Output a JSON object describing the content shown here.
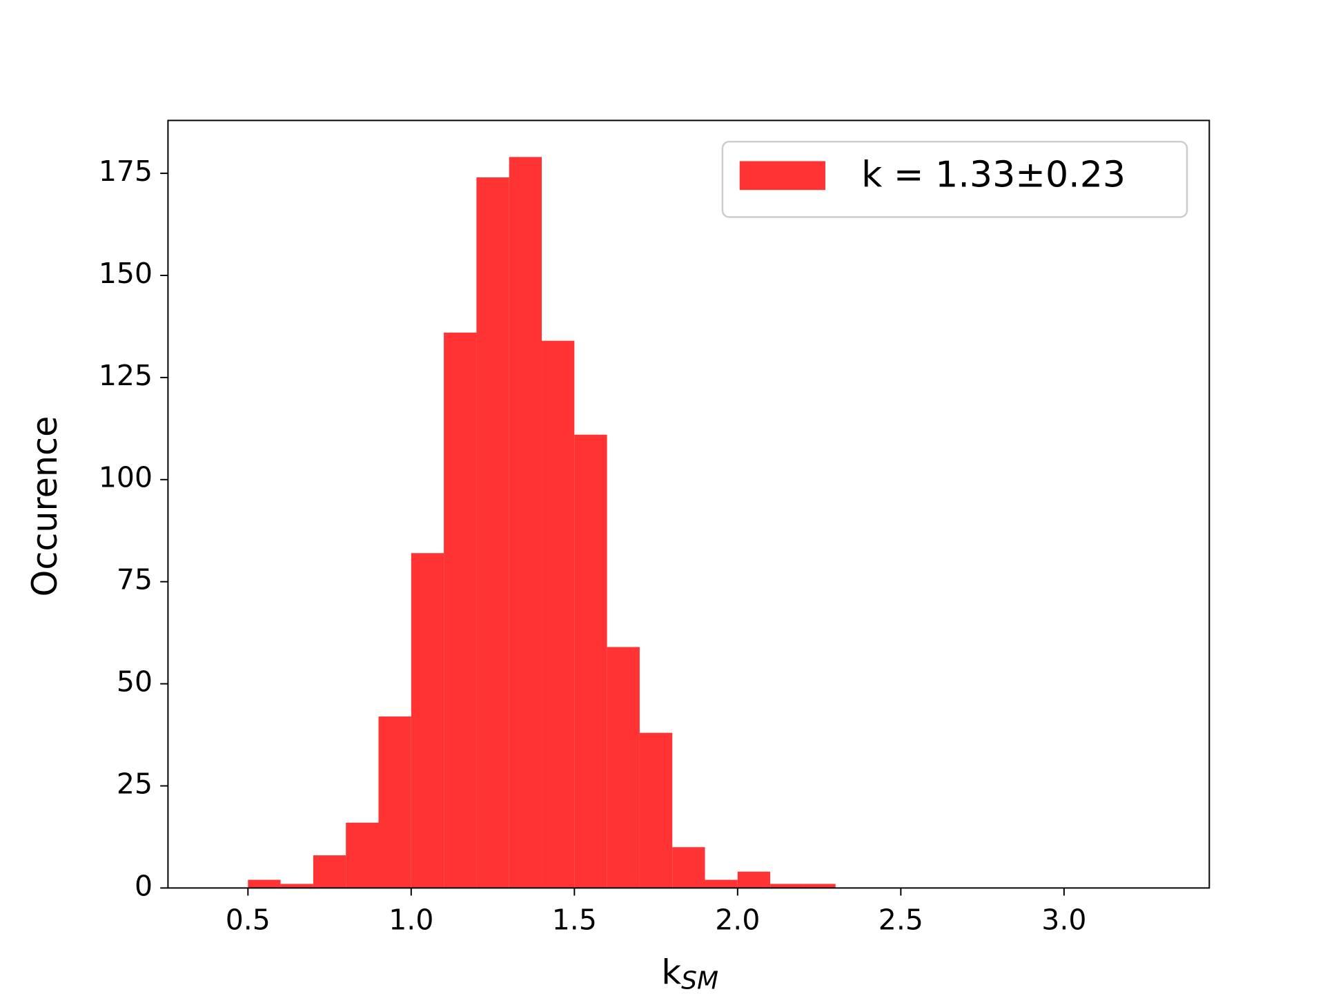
{
  "chart_data": {
    "type": "histogram",
    "x_label": "k",
    "x_label_subscript": "SM",
    "y_label": "Occurence",
    "bins": [
      0.4,
      0.5,
      0.6,
      0.7,
      0.8,
      0.9,
      1.0,
      1.1,
      1.2,
      1.3,
      1.4,
      1.5,
      1.6,
      1.7,
      1.8,
      1.9,
      2.0,
      2.1,
      2.2,
      2.3,
      2.4,
      2.5,
      2.6,
      2.7,
      2.8,
      2.9,
      3.0,
      3.1,
      3.2,
      3.3
    ],
    "series": [
      {
        "name": "k = 1.33±0.23",
        "color": "#ff3333",
        "values": [
          0,
          2,
          1,
          8,
          16,
          42,
          82,
          136,
          174,
          179,
          134,
          111,
          59,
          38,
          10,
          2,
          4,
          1,
          1,
          0,
          0,
          0,
          0,
          0,
          0,
          0,
          0,
          0,
          0
        ]
      }
    ],
    "xlim": [
      0.255,
      3.445
    ],
    "ylim": [
      0,
      187.95
    ],
    "xticks": [
      0.5,
      {
        "value": 1,
        "label": "1.0"
      },
      1.5,
      {
        "value": 2,
        "label": "2.0"
      },
      2.5,
      {
        "value": 3,
        "label": "3.0"
      }
    ],
    "yticks": [
      0,
      25,
      50,
      75,
      100,
      125,
      150,
      175
    ],
    "legend": "upper right",
    "grid": false
  }
}
